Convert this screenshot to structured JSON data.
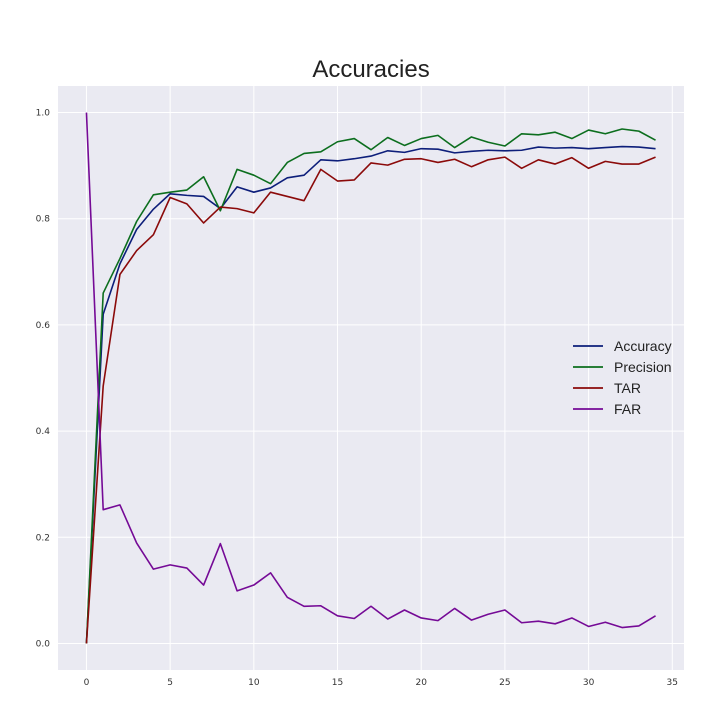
{
  "chart_data": {
    "type": "line",
    "title": "Accuracies",
    "xlabel": "",
    "ylabel": "",
    "xlim": [
      -1.7,
      35.7
    ],
    "ylim": [
      -0.05,
      1.05
    ],
    "xticks": [
      0,
      5,
      10,
      15,
      20,
      25,
      30,
      35
    ],
    "yticks": [
      0.0,
      0.2,
      0.4,
      0.6,
      0.8,
      1.0
    ],
    "xtick_labels": [
      "0",
      "5",
      "10",
      "15",
      "20",
      "25",
      "30",
      "35"
    ],
    "ytick_labels": [
      "0.0",
      "0.2",
      "0.4",
      "0.6",
      "0.8",
      "1.0"
    ],
    "grid": true,
    "legend_position": "center-right",
    "x": [
      0,
      1,
      2,
      3,
      4,
      5,
      6,
      7,
      8,
      9,
      10,
      11,
      12,
      13,
      14,
      15,
      16,
      17,
      18,
      19,
      20,
      21,
      22,
      23,
      24,
      25,
      26,
      27,
      28,
      29,
      30,
      31,
      32,
      33,
      34
    ],
    "series": [
      {
        "name": "Accuracy",
        "color": "#0d1e7a",
        "values": [
          0.0,
          0.62,
          0.715,
          0.78,
          0.818,
          0.847,
          0.844,
          0.842,
          0.819,
          0.86,
          0.85,
          0.858,
          0.877,
          0.882,
          0.911,
          0.909,
          0.913,
          0.918,
          0.928,
          0.925,
          0.932,
          0.931,
          0.924,
          0.927,
          0.929,
          0.928,
          0.929,
          0.935,
          0.933,
          0.934,
          0.932,
          0.934,
          0.936,
          0.935,
          0.932
        ]
      },
      {
        "name": "Precision",
        "color": "#0c6e1e",
        "values": [
          0.0,
          0.66,
          0.725,
          0.795,
          0.845,
          0.85,
          0.854,
          0.879,
          0.815,
          0.893,
          0.882,
          0.866,
          0.906,
          0.923,
          0.926,
          0.945,
          0.951,
          0.93,
          0.953,
          0.938,
          0.951,
          0.957,
          0.934,
          0.954,
          0.944,
          0.937,
          0.96,
          0.958,
          0.963,
          0.951,
          0.967,
          0.96,
          0.969,
          0.965,
          0.948
        ]
      },
      {
        "name": "TAR",
        "color": "#8b0a0a",
        "values": [
          0.0,
          0.485,
          0.695,
          0.74,
          0.77,
          0.84,
          0.828,
          0.792,
          0.822,
          0.819,
          0.811,
          0.85,
          0.842,
          0.834,
          0.893,
          0.871,
          0.873,
          0.905,
          0.901,
          0.912,
          0.913,
          0.906,
          0.912,
          0.898,
          0.911,
          0.916,
          0.895,
          0.911,
          0.903,
          0.915,
          0.895,
          0.908,
          0.903,
          0.903,
          0.916
        ]
      },
      {
        "name": "FAR",
        "color": "#750a96",
        "values": [
          1.0,
          0.252,
          0.261,
          0.189,
          0.14,
          0.148,
          0.142,
          0.11,
          0.188,
          0.099,
          0.11,
          0.133,
          0.087,
          0.07,
          0.071,
          0.052,
          0.047,
          0.07,
          0.046,
          0.063,
          0.048,
          0.043,
          0.066,
          0.044,
          0.055,
          0.063,
          0.039,
          0.042,
          0.037,
          0.048,
          0.032,
          0.04,
          0.03,
          0.033,
          0.052
        ]
      }
    ]
  }
}
